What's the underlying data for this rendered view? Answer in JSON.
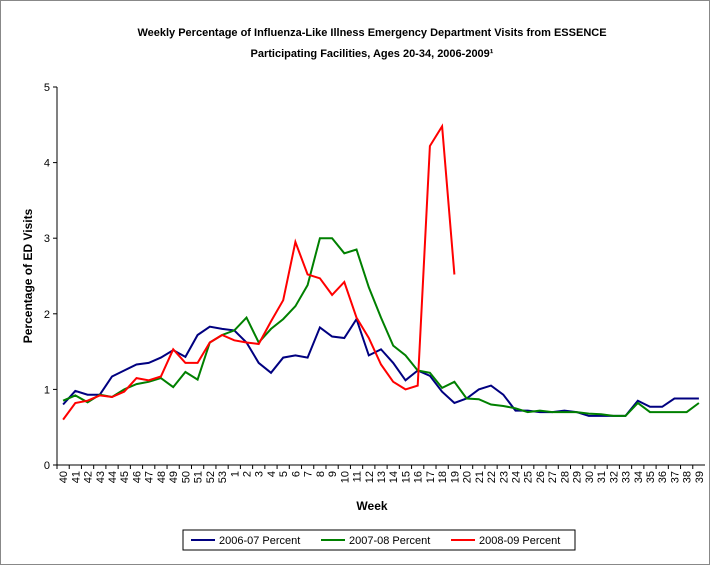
{
  "chart_data": {
    "type": "line",
    "title": [
      "Weekly Percentage of Influenza-Like Illness Emergency Department Visits from ESSENCE",
      "Participating Facilities, Ages 20-34, 2006-2009¹"
    ],
    "x_label": "Week",
    "y_label": "Percentage of ED Visits",
    "categories": [
      "40",
      "41",
      "42",
      "43",
      "44",
      "45",
      "46",
      "47",
      "48",
      "49",
      "50",
      "51",
      "52",
      "53",
      "1",
      "2",
      "3",
      "4",
      "5",
      "6",
      "7",
      "8",
      "9",
      "10",
      "11",
      "12",
      "13",
      "14",
      "15",
      "16",
      "17",
      "18",
      "19",
      "20",
      "21",
      "22",
      "23",
      "24",
      "25",
      "26",
      "27",
      "28",
      "29",
      "30",
      "31",
      "32",
      "33",
      "34",
      "35",
      "36",
      "37",
      "38",
      "39"
    ],
    "ylim": [
      0,
      5
    ],
    "yticks": [
      0,
      1,
      2,
      3,
      4,
      5
    ],
    "grid": false,
    "legend": "bottom",
    "series": [
      {
        "name": "2006-07 Percent",
        "color": "#000080",
        "values": [
          0.8,
          0.98,
          0.93,
          0.93,
          1.17,
          1.25,
          1.33,
          1.35,
          1.42,
          1.52,
          1.43,
          1.72,
          1.83,
          1.8,
          1.78,
          1.62,
          1.35,
          1.22,
          1.42,
          1.45,
          1.42,
          1.82,
          1.7,
          1.68,
          1.93,
          1.45,
          1.53,
          1.35,
          1.12,
          1.25,
          1.18,
          0.97,
          0.82,
          0.88,
          1.0,
          1.05,
          0.93,
          0.72,
          0.72,
          0.7,
          0.7,
          0.72,
          0.7,
          0.65,
          0.65,
          0.65,
          0.65,
          0.85,
          0.77,
          0.77,
          0.88,
          0.88,
          0.88
        ]
      },
      {
        "name": "2007-08 Percent",
        "color": "#008000",
        "values": [
          0.85,
          0.92,
          0.83,
          0.93,
          0.9,
          1.0,
          1.07,
          1.1,
          1.15,
          1.03,
          1.23,
          1.13,
          1.62,
          1.72,
          1.78,
          1.95,
          1.62,
          1.8,
          1.93,
          2.1,
          2.38,
          3.0,
          3.0,
          2.8,
          2.85,
          2.35,
          1.95,
          1.58,
          1.45,
          1.25,
          1.22,
          1.02,
          1.1,
          0.88,
          0.87,
          0.8,
          0.78,
          0.75,
          0.7,
          0.72,
          0.7,
          0.7,
          0.7,
          0.68,
          0.67,
          0.65,
          0.65,
          0.82,
          0.7,
          0.7,
          0.7,
          0.7,
          0.82
        ]
      },
      {
        "name": "2008-09 Percent",
        "color": "#ff0000",
        "values": [
          0.6,
          0.82,
          0.85,
          0.92,
          0.9,
          0.97,
          1.15,
          1.12,
          1.17,
          1.53,
          1.35,
          1.35,
          1.62,
          1.72,
          1.65,
          1.62,
          1.6,
          1.9,
          2.18,
          2.95,
          2.52,
          2.47,
          2.25,
          2.42,
          1.95,
          1.68,
          1.33,
          1.1,
          1.0,
          1.05,
          4.22,
          4.48,
          2.52,
          null,
          null,
          null,
          null,
          null,
          null,
          null,
          null,
          null,
          null,
          null,
          null,
          null,
          null,
          null,
          null,
          null,
          null,
          null,
          null
        ]
      }
    ]
  }
}
